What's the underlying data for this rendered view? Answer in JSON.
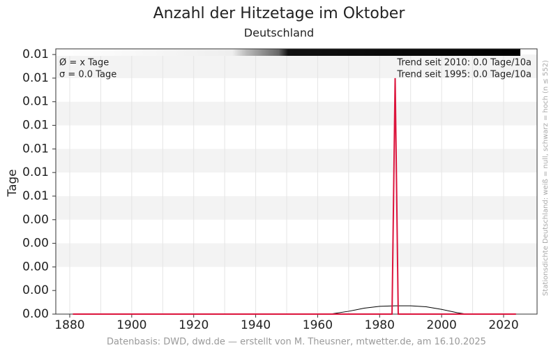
{
  "chart_data": {
    "type": "line",
    "title": "Anzahl der Hitzetage im Oktober",
    "subtitle": "Deutschland",
    "y_label": "Tage",
    "annotations": [
      "Ø = x Tage",
      "σ = 0.0 Tage",
      "Trend seit 2010: 0.0 Tage/10a",
      "Trend seit 1995: 0.0 Tage/10a"
    ],
    "density_note": "Stationsdichte Deutschland: weiß = null, schwarz = hoch (n ≤ 552)",
    "footer": "Datenbasis: DWD, dwd.de — erstellt von M. Theusner, mtwetter.de, am 16.10.2025",
    "xlim": [
      1875.5,
      2030.8
    ],
    "xticks": [
      1880,
      1900,
      1920,
      1940,
      1960,
      1980,
      2000,
      2020
    ],
    "xminorticks": [
      1890,
      1910,
      1930,
      1950,
      1970,
      1990,
      2010
    ],
    "ylim": [
      0,
      0.01124
    ],
    "yticks": [
      {
        "value": 0,
        "label": "0.00"
      },
      {
        "value": 0.001,
        "label": "0.00"
      },
      {
        "value": 0.002,
        "label": "0.00"
      },
      {
        "value": 0.003,
        "label": "0.00"
      },
      {
        "value": 0.004,
        "label": "0.00"
      },
      {
        "value": 0.005,
        "label": "0.01"
      },
      {
        "value": 0.006,
        "label": "0.01"
      },
      {
        "value": 0.007,
        "label": "0.01"
      },
      {
        "value": 0.008,
        "label": "0.01"
      },
      {
        "value": 0.009,
        "label": "0.01"
      },
      {
        "value": 0.01,
        "label": "0.01"
      },
      {
        "value": 0.011,
        "label": "0.01"
      }
    ],
    "grid": true,
    "series": [
      {
        "color": "#000000",
        "x": [
          1964,
          1970,
          1975,
          1980,
          1985,
          1990,
          1995,
          2000,
          2005,
          2008
        ],
        "values": [
          0,
          0.00012,
          0.00025,
          0.00033,
          0.00035,
          0.00035,
          0.00031,
          0.0002,
          6e-05,
          0
        ]
      },
      {
        "color": "#dc143c",
        "x": [
          1881,
          1984,
          1985,
          1986,
          2024
        ],
        "values": [
          0,
          0,
          0.01,
          0,
          0
        ]
      }
    ]
  }
}
